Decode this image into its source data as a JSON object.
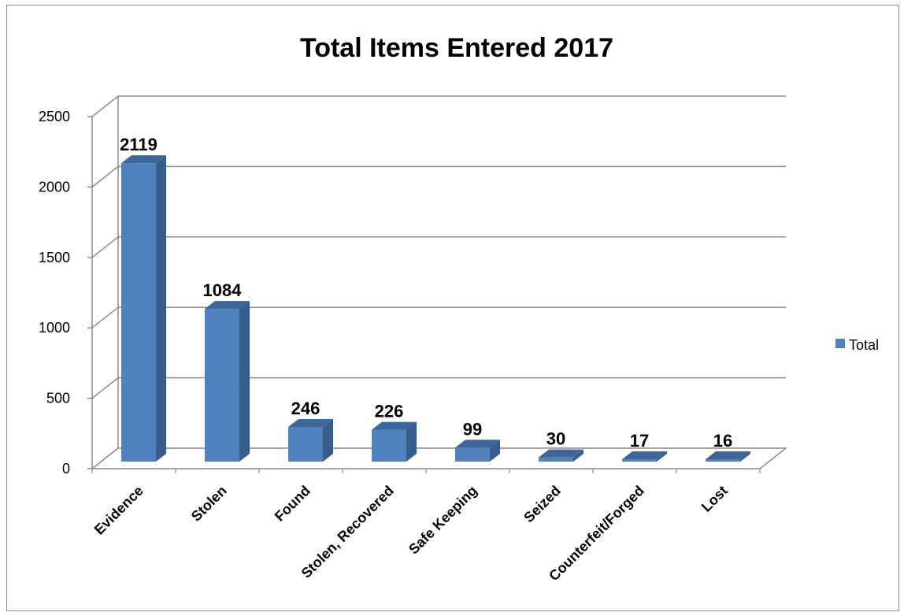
{
  "chart_data": {
    "type": "bar",
    "title": "Total Items Entered 2017",
    "categories": [
      "Evidence",
      "Stolen",
      "Found",
      "Stolen, Recovered",
      "Safe Keeping",
      "Seized",
      "Counterfeit/Forged",
      "Lost"
    ],
    "series": [
      {
        "name": "Total",
        "values": [
          2119,
          1084,
          246,
          226,
          99,
          30,
          17,
          16
        ],
        "color": "#4f81bd"
      }
    ],
    "data_labels": [
      "2119",
      "1084",
      "246",
      "226",
      "99",
      "30",
      "17",
      "16"
    ],
    "yticks": [
      "0",
      "500",
      "1000",
      "1500",
      "2000",
      "2500"
    ],
    "ylim": [
      0,
      2500
    ],
    "grid": true,
    "legend": "right",
    "three_d": true
  }
}
